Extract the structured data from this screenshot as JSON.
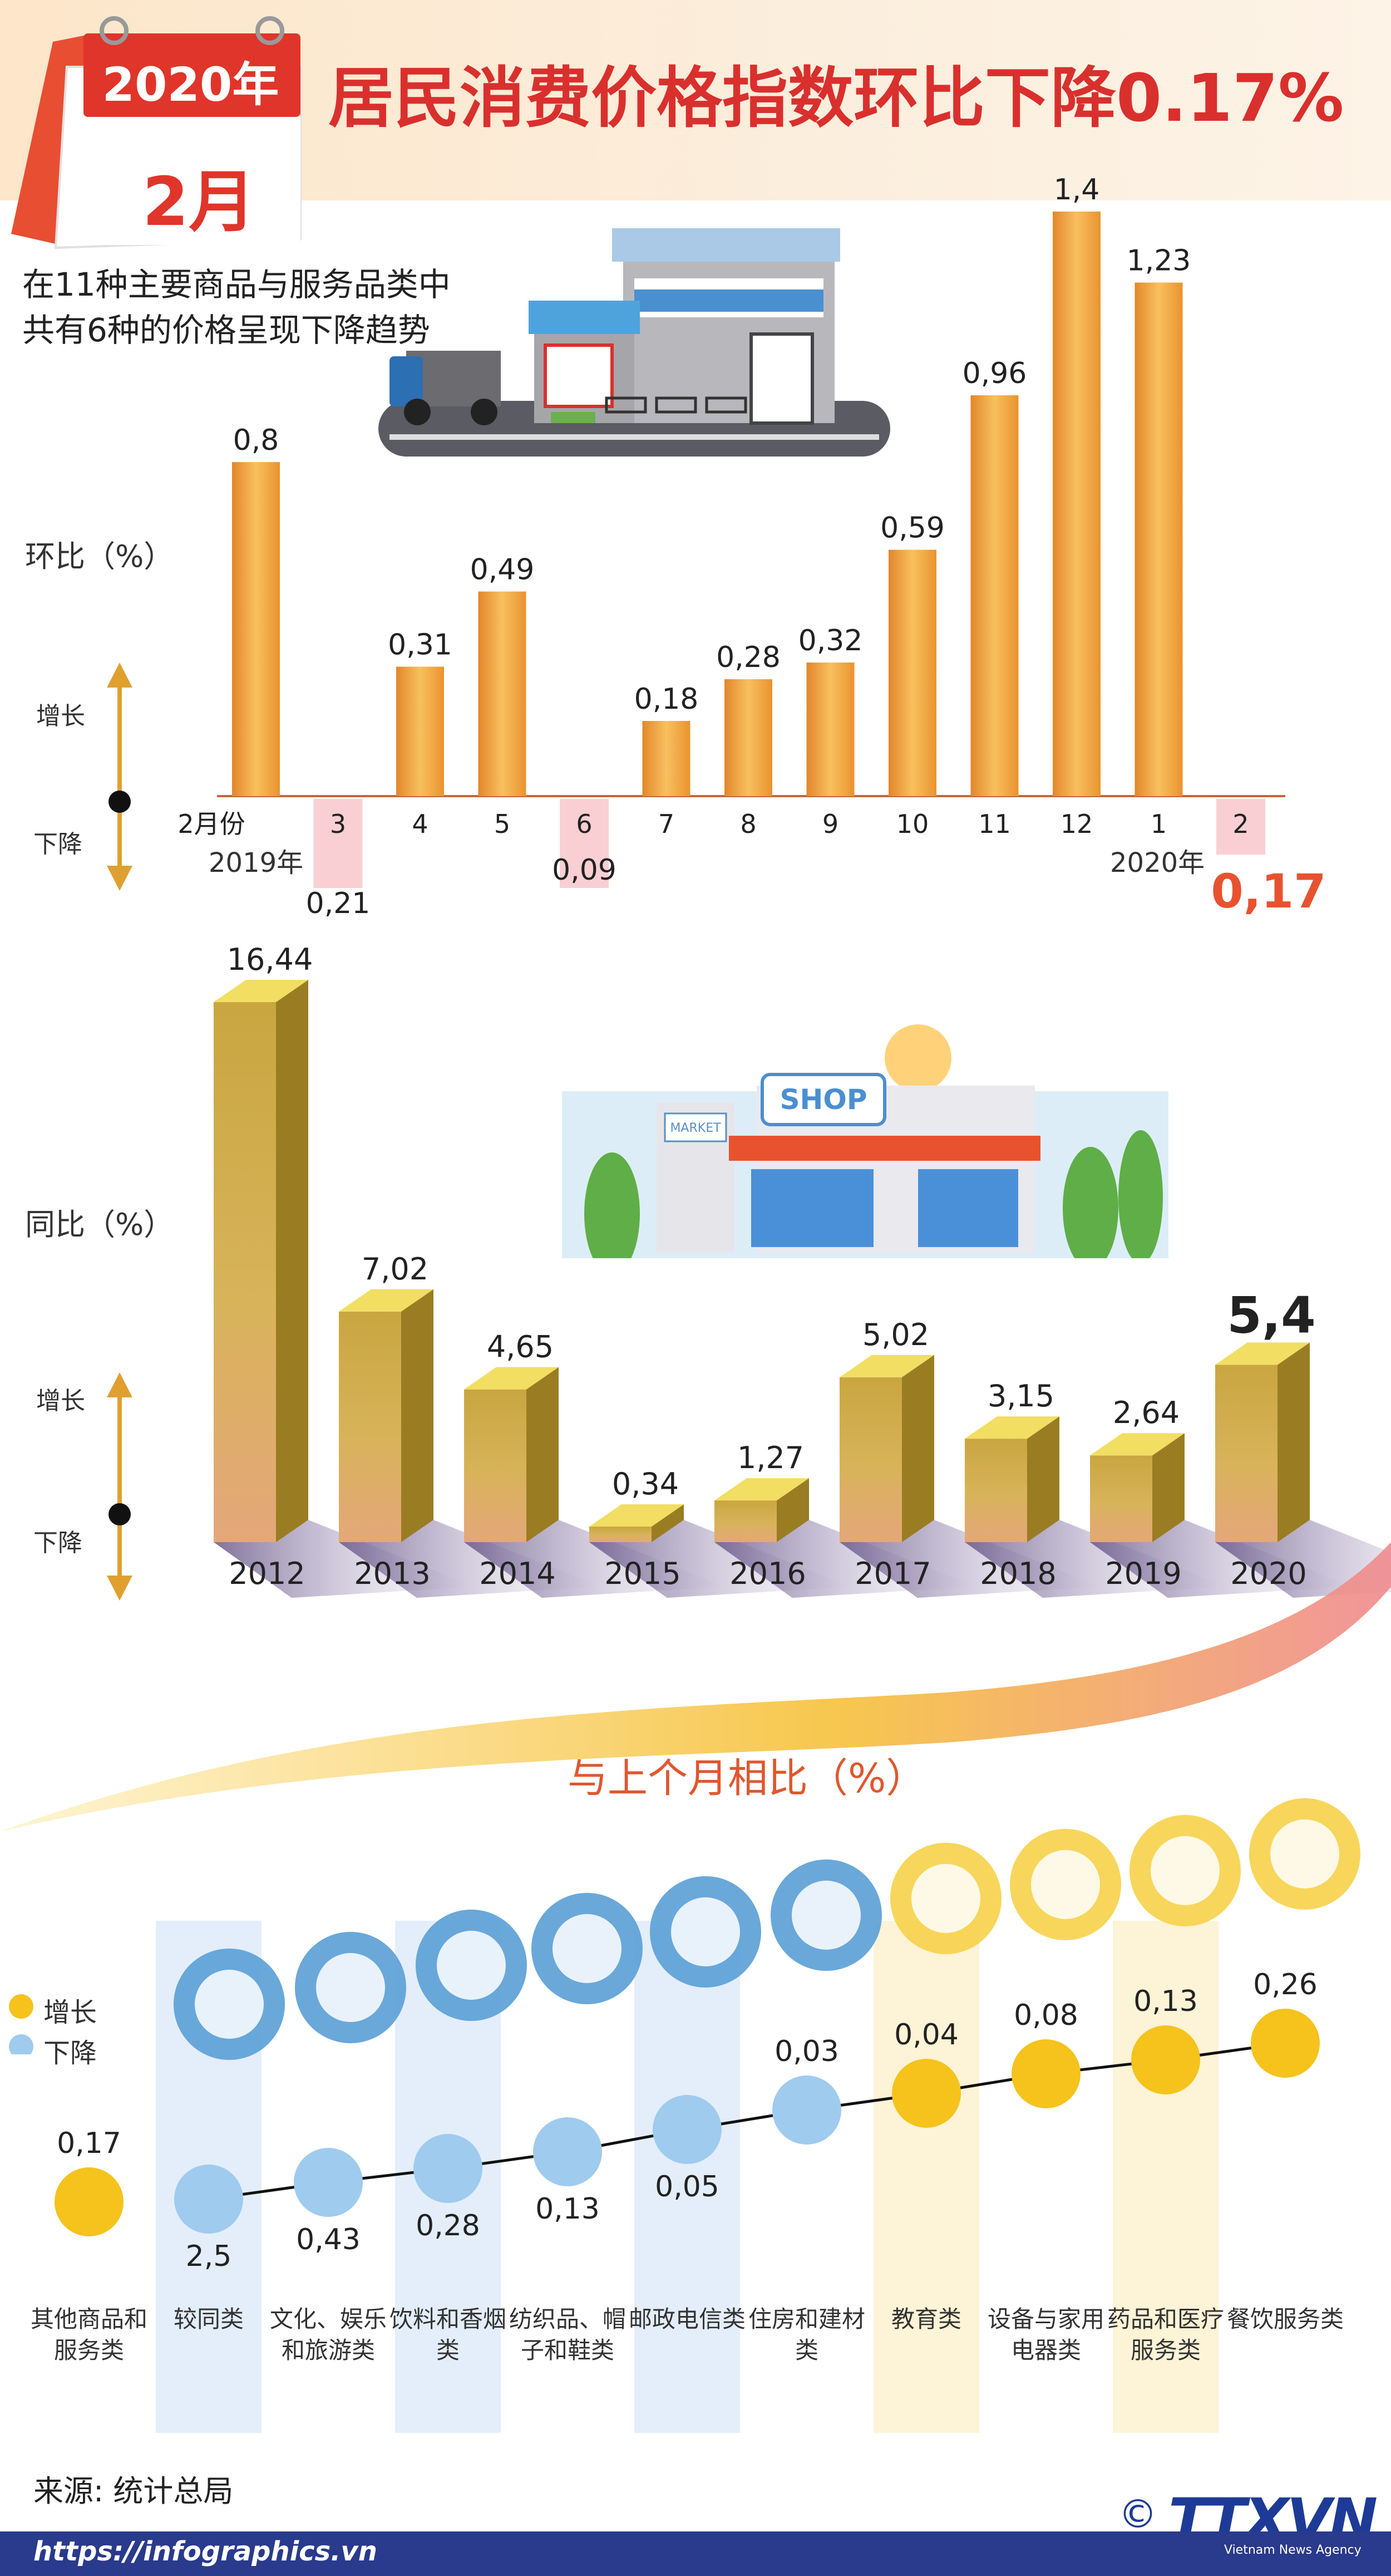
{
  "header": {
    "title": "居民消费价格指数环比下降0.17%",
    "calendar_year": "2020年",
    "calendar_month": "2月"
  },
  "intro": {
    "line1": "在11种主要商品与服务品类中",
    "line2": "共有6种的价格呈现下降趋势"
  },
  "legend_words": {
    "up": "增长",
    "down": "下降"
  },
  "colors": {
    "title_red": "#d9302e",
    "bar_orange": "#f0a63a",
    "bar_olive": "#b59a2f",
    "up_dot": "#f5c31c",
    "down_dot": "#9fcbee"
  },
  "chart_data": [
    {
      "type": "bar",
      "title": "",
      "ylabel": "环比（%）",
      "categories": [
        "2月份",
        "3",
        "4",
        "5",
        "6",
        "7",
        "8",
        "9",
        "10",
        "11",
        "12",
        "1",
        "2"
      ],
      "values": [
        0.8,
        -0.21,
        0.31,
        0.49,
        -0.09,
        0.18,
        0.28,
        0.32,
        0.59,
        0.96,
        1.4,
        1.23,
        -0.17
      ],
      "value_labels": [
        "0,8",
        "0,21",
        "0,31",
        "0,49",
        "0,09",
        "0,18",
        "0,28",
        "0,32",
        "0,59",
        "0,96",
        "1,4",
        "1,23",
        "0,17"
      ],
      "year_labels": [
        "2019年",
        "2020年"
      ],
      "ylim": [
        -0.21,
        1.4
      ]
    },
    {
      "type": "bar",
      "title": "",
      "ylabel": "同比（%）",
      "categories": [
        "2012",
        "2013",
        "2014",
        "2015",
        "2016",
        "2017",
        "2018",
        "2019",
        "2020"
      ],
      "values": [
        16.44,
        7.02,
        4.65,
        0.34,
        1.27,
        5.02,
        3.15,
        2.64,
        5.4
      ],
      "value_labels": [
        "16,44",
        "7,02",
        "4,65",
        "0,34",
        "1,27",
        "5,02",
        "3,15",
        "2,64",
        "5,4"
      ]
    },
    {
      "type": "line",
      "title": "与上个月相比（%）",
      "legend": [
        "增长",
        "下降"
      ],
      "categories": [
        "其他商品和服务类",
        "较同类",
        "文化、娱乐和旅游类",
        "饮料和香烟类",
        "纺织品、帽子和鞋类",
        "邮政电信类",
        "住房和建材类",
        "教育类",
        "设备与家用电器类",
        "药品和医疗服务类",
        "餐饮服务类"
      ],
      "values": [
        0.17,
        -2.5,
        -0.43,
        -0.28,
        -0.13,
        -0.05,
        -0.03,
        0.04,
        0.08,
        0.13,
        0.26
      ],
      "value_labels": [
        "0,17",
        "2,5",
        "0,43",
        "0,28",
        "0,13",
        "0,05",
        "0,03",
        "0,04",
        "0,08",
        "0,13",
        "0,26"
      ]
    }
  ],
  "illustrations": {
    "shop_sign": "SHOP",
    "market_sign": "MARKET"
  },
  "footer": {
    "source": "来源: 统计总局",
    "url": "https://infographics.vn",
    "logo": "TTXVN",
    "logo_sub": "Vietnam News Agency",
    "copyright": "©"
  }
}
